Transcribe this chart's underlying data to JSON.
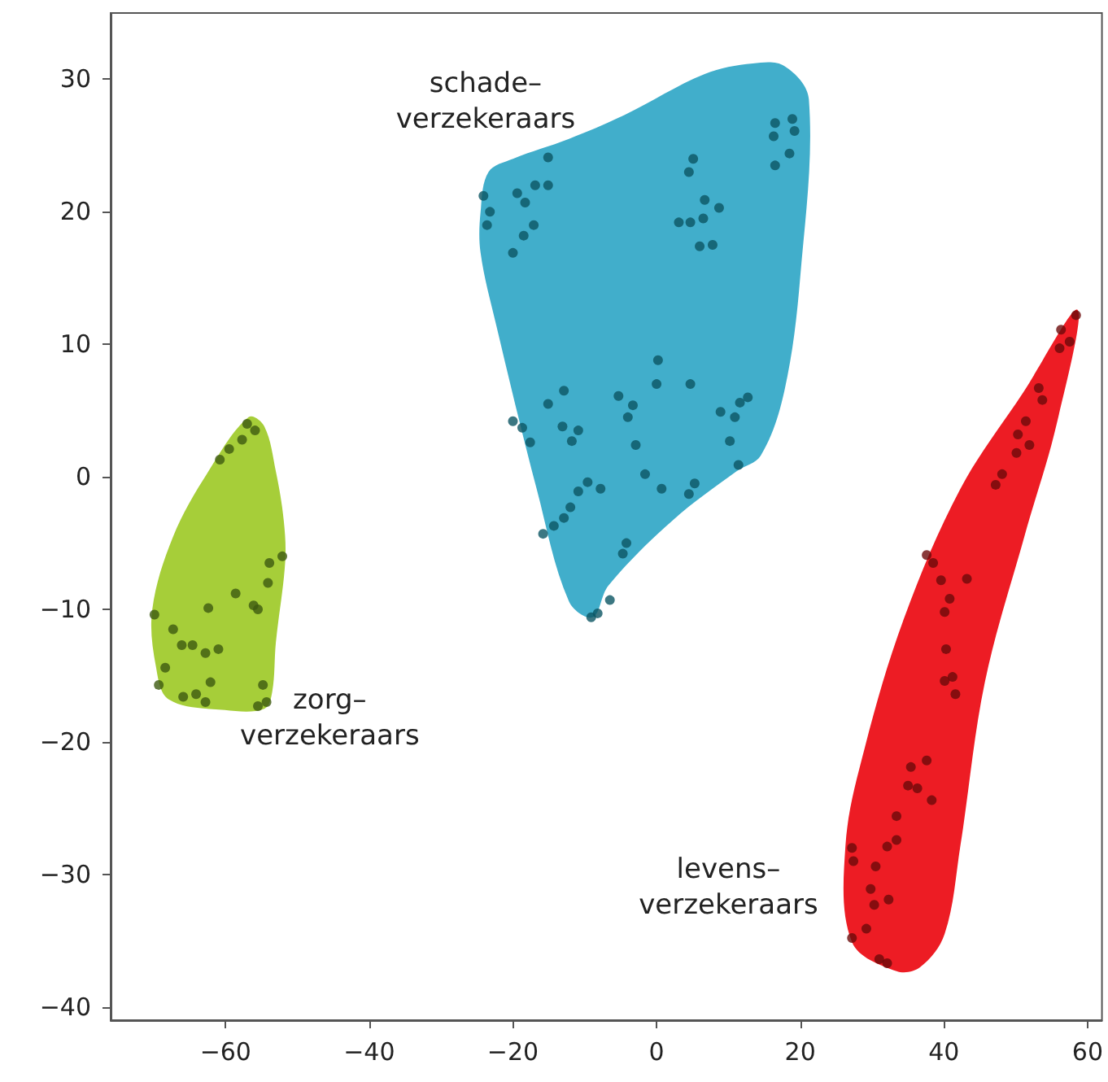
{
  "chart_data": {
    "type": "scatter",
    "xlim": [
      -76,
      62
    ],
    "ylim": [
      -41,
      35
    ],
    "xticks": [
      -60,
      -40,
      -20,
      0,
      20,
      40,
      60
    ],
    "yticks": [
      -40,
      -30,
      -20,
      -10,
      0,
      10,
      20,
      30
    ],
    "grid": false,
    "legend": false,
    "marker": "circle",
    "series": [
      {
        "type": "area",
        "marker": "none",
        "color": "#a6ce39",
        "x": [
          -56.8,
          -54.6,
          -53.0,
          -51.9,
          -51.7,
          -53.0,
          -53.5,
          -54.6,
          -60.1,
          -67.9,
          -69.7,
          -70.2,
          -67.3,
          -62.4
        ],
        "values": [
          4.5,
          3.8,
          0.4,
          -3.3,
          -6.4,
          -12.5,
          -16.2,
          -17.5,
          -17.6,
          -16.8,
          -14.3,
          -10.0,
          -4.5,
          0.4
        ]
      },
      {
        "type": "area",
        "marker": "none",
        "color": "#41aecb",
        "x": [
          -24.5,
          -23.4,
          -20.0,
          -12.2,
          -4.5,
          6.7,
          13.4,
          17.8,
          21.2,
          20.0,
          17.8,
          14.5,
          11.1,
          2.2,
          -6.7,
          -8.9,
          -12.2,
          -16.7,
          -22.3,
          -24.5
        ],
        "values": [
          20.0,
          23.0,
          24.0,
          25.5,
          27.3,
          30.4,
          31.2,
          31.0,
          28.5,
          15.1,
          6.5,
          1.6,
          0.4,
          -3.3,
          -8.2,
          -10.6,
          -9.4,
          -0.9,
          11.4,
          16.9
        ]
      },
      {
        "type": "area",
        "marker": "none",
        "color": "#ed1c24",
        "x": [
          58.6,
          55.7,
          51.2,
          45.7,
          42.3,
          40.1,
          36.7,
          33.4,
          27.2,
          26.3,
          29.0,
          34.5,
          42.3,
          51.2
        ],
        "values": [
          12.6,
          4.0,
          -4.5,
          -15.5,
          -27.8,
          -34.5,
          -37.0,
          -37.3,
          -35.1,
          -27.8,
          -20.4,
          -10.6,
          -0.9,
          6.5
        ]
      },
      {
        "name": "zorg–\nverzekeraars",
        "color": "#3d5a10",
        "x": [
          -57.0,
          -55.9,
          -57.7,
          -59.5,
          -60.8,
          -52.1,
          -53.9,
          -54.1,
          -58.6,
          -56.1,
          -55.5,
          -62.4,
          -69.9,
          -67.3,
          -66.1,
          -64.6,
          -62.8,
          -61.0,
          -68.4,
          -69.3,
          -65.9,
          -64.1,
          -62.8,
          -62.1,
          -54.8,
          -55.5,
          -54.3
        ],
        "values": [
          4.0,
          3.5,
          2.8,
          2.1,
          1.3,
          -6.0,
          -6.5,
          -8.0,
          -8.8,
          -9.7,
          -10.0,
          -9.9,
          -10.4,
          -11.5,
          -12.7,
          -12.7,
          -13.3,
          -13.0,
          -14.4,
          -15.7,
          -16.6,
          -16.4,
          -17.0,
          -15.5,
          -15.7,
          -17.3,
          -17.0
        ]
      },
      {
        "name": "schade–\nverzekeraars",
        "color": "#0b5563",
        "x": [
          -24.1,
          -23.2,
          -23.6,
          -19.4,
          -18.3,
          -16.9,
          -15.1,
          -15.1,
          -17.1,
          -18.5,
          -20.0,
          5.1,
          4.5,
          6.7,
          8.7,
          3.1,
          4.7,
          6.5,
          6.0,
          7.8,
          16.5,
          18.9,
          16.3,
          19.2,
          18.5,
          16.5,
          0.2,
          0.0,
          4.7,
          -5.3,
          -3.3,
          -4.0,
          -2.9,
          -12.9,
          -15.1,
          -13.1,
          -10.9,
          -11.8,
          -20.0,
          -18.7,
          -17.6,
          8.9,
          10.9,
          11.6,
          12.7,
          10.2,
          11.4,
          -1.6,
          0.7,
          5.3,
          4.5,
          -9.6,
          -7.8,
          -10.9,
          -12.0,
          -12.9,
          -14.3,
          -15.8,
          -4.2,
          -4.7,
          -6.5,
          -8.2,
          -9.1
        ],
        "values": [
          21.2,
          20.0,
          19.0,
          21.4,
          20.7,
          22.0,
          22.0,
          24.1,
          19.0,
          18.2,
          16.9,
          24.0,
          23.0,
          20.9,
          20.3,
          19.2,
          19.2,
          19.5,
          17.4,
          17.5,
          26.7,
          27.0,
          25.7,
          26.1,
          24.4,
          23.5,
          8.8,
          7.0,
          7.0,
          6.1,
          5.4,
          4.5,
          2.4,
          6.5,
          5.5,
          3.8,
          3.5,
          2.7,
          4.2,
          3.7,
          2.6,
          4.9,
          4.5,
          5.6,
          6.0,
          2.7,
          0.9,
          0.2,
          -0.9,
          -0.5,
          -1.3,
          -0.4,
          -0.9,
          -1.1,
          -2.3,
          -3.1,
          -3.7,
          -4.3,
          -5.0,
          -5.8,
          -9.3,
          -10.3,
          -10.6
        ]
      },
      {
        "name": "levens–\nverzekeraars",
        "color": "#6b0a0a",
        "x": [
          58.4,
          56.3,
          57.5,
          56.1,
          53.2,
          53.7,
          51.4,
          50.3,
          51.9,
          50.1,
          48.1,
          47.2,
          37.6,
          38.5,
          39.6,
          43.2,
          40.8,
          40.1,
          40.3,
          41.2,
          40.1,
          41.6,
          37.6,
          35.4,
          35.0,
          36.3,
          38.3,
          33.4,
          33.4,
          32.1,
          27.2,
          27.4,
          30.5,
          29.8,
          32.3,
          30.3,
          29.2,
          27.2,
          31.0,
          32.1
        ],
        "values": [
          12.2,
          11.1,
          10.2,
          9.7,
          6.7,
          5.8,
          4.2,
          3.2,
          2.4,
          1.8,
          0.2,
          -0.6,
          -5.9,
          -6.5,
          -7.8,
          -7.7,
          -9.2,
          -10.2,
          -13.0,
          -15.1,
          -15.4,
          -16.4,
          -21.4,
          -21.9,
          -23.3,
          -23.5,
          -24.4,
          -25.6,
          -27.4,
          -27.9,
          -28.0,
          -29.0,
          -29.4,
          -31.1,
          -31.9,
          -32.3,
          -34.1,
          -34.8,
          -36.4,
          -36.7
        ]
      }
    ]
  }
}
